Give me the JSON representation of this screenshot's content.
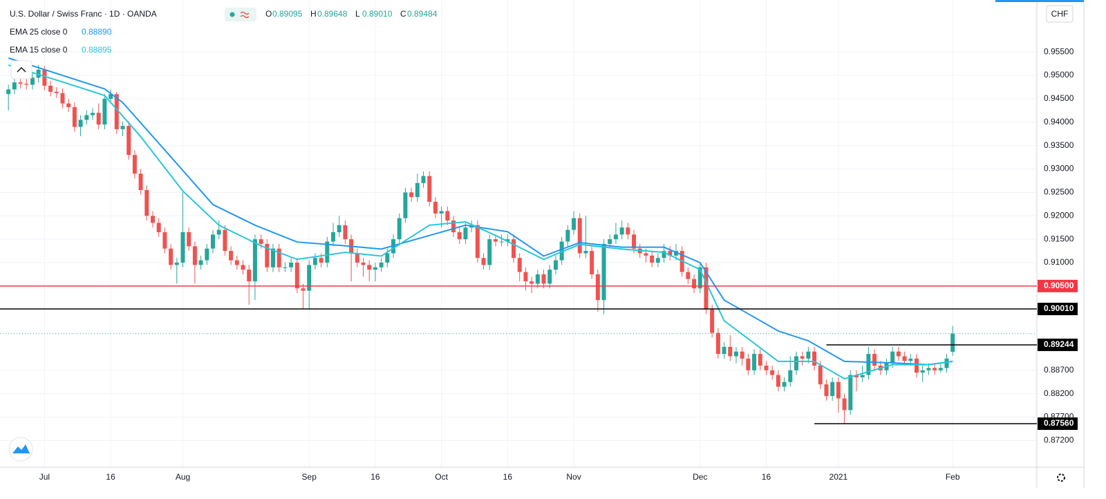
{
  "chart_data": {
    "type": "candlestick",
    "title": "U.S. Dollar / Swiss Franc · 1D · OANDA",
    "ohlc_prefixes": [
      "O",
      "H",
      "L",
      "C"
    ],
    "ohlc_labels": [
      "0.89095",
      "0.89648",
      "0.89010",
      "0.89484"
    ],
    "axis_unit": "CHF",
    "up_color": "#26a69a",
    "down_color": "#ef5350",
    "grid": true,
    "xlim": [
      -1.4,
      171
    ],
    "ylim": [
      0.8663,
      0.9661
    ],
    "yticks": [
      {
        "value": 0.955,
        "label": "0.95500"
      },
      {
        "value": 0.95,
        "label": "0.95000"
      },
      {
        "value": 0.945,
        "label": "0.94500"
      },
      {
        "value": 0.94,
        "label": "0.94000"
      },
      {
        "value": 0.935,
        "label": "0.93500"
      },
      {
        "value": 0.93,
        "label": "0.93000"
      },
      {
        "value": 0.925,
        "label": "0.92500"
      },
      {
        "value": 0.92,
        "label": "0.92000"
      },
      {
        "value": 0.915,
        "label": "0.91500"
      },
      {
        "value": 0.91,
        "label": "0.91000"
      },
      {
        "value": 0.887,
        "label": "0.88700"
      },
      {
        "value": 0.882,
        "label": "0.88200"
      },
      {
        "value": 0.877,
        "label": "0.87700"
      },
      {
        "value": 0.872,
        "label": "0.87200"
      }
    ],
    "xticks": [
      {
        "value": 6,
        "label": "Jul"
      },
      {
        "value": 17,
        "label": "16"
      },
      {
        "value": 29,
        "label": "Aug"
      },
      {
        "value": 50,
        "label": "Sep"
      },
      {
        "value": 61,
        "label": "16"
      },
      {
        "value": 72,
        "label": "Oct"
      },
      {
        "value": 83,
        "label": "16"
      },
      {
        "value": 94,
        "label": "Nov"
      },
      {
        "value": 115,
        "label": "Dec"
      },
      {
        "value": 126,
        "label": "16"
      },
      {
        "value": 138,
        "label": "2021"
      },
      {
        "value": 157,
        "label": "Feb"
      }
    ],
    "hlines": [
      {
        "value": 0.905,
        "label": "0.90500",
        "color": "#f23645"
      },
      {
        "value": 0.9001,
        "label": "0.90010",
        "color": "#000000"
      },
      {
        "value": 0.89244,
        "label": "0.89244",
        "color": "#000000",
        "from": 136
      },
      {
        "value": 0.8756,
        "label": "0.87560",
        "color": "#000000",
        "from": 134
      }
    ],
    "open": [
      0.946,
      0.947,
      0.9485,
      0.9482,
      0.948,
      0.9495,
      0.9512,
      0.9478,
      0.9465,
      0.9462,
      0.944,
      0.9432,
      0.939,
      0.9405,
      0.9415,
      0.942,
      0.9395,
      0.945,
      0.946,
      0.9385,
      0.9392,
      0.933,
      0.929,
      0.9255,
      0.92,
      0.9185,
      0.9165,
      0.913,
      0.9095,
      0.91,
      0.9165,
      0.9135,
      0.9095,
      0.9105,
      0.913,
      0.916,
      0.917,
      0.9125,
      0.9105,
      0.9095,
      0.9085,
      0.906,
      0.915,
      0.914,
      0.909,
      0.913,
      0.909,
      0.909,
      0.91,
      0.9045,
      0.904,
      0.9095,
      0.911,
      0.91,
      0.9145,
      0.9165,
      0.918,
      0.915,
      0.912,
      0.91,
      0.9095,
      0.9085,
      0.909,
      0.91,
      0.912,
      0.915,
      0.9195,
      0.925,
      0.924,
      0.927,
      0.9285,
      0.923,
      0.9205,
      0.921,
      0.919,
      0.9165,
      0.915,
      0.9175,
      0.918,
      0.911,
      0.9095,
      0.915,
      0.9145,
      0.9145,
      0.915,
      0.911,
      0.908,
      0.906,
      0.9055,
      0.9075,
      0.9055,
      0.9085,
      0.9105,
      0.9145,
      0.917,
      0.9195,
      0.912,
      0.9125,
      0.9075,
      0.902,
      0.914,
      0.915,
      0.916,
      0.9175,
      0.916,
      0.913,
      0.912,
      0.9115,
      0.91,
      0.911,
      0.9125,
      0.9115,
      0.9125,
      0.908,
      0.9065,
      0.9045,
      0.909,
      0.9,
      0.895,
      0.8905,
      0.892,
      0.89,
      0.891,
      0.8895,
      0.887,
      0.8905,
      0.888,
      0.887,
      0.886,
      0.8835,
      0.8845,
      0.887,
      0.89,
      0.8895,
      0.891,
      0.888,
      0.884,
      0.8815,
      0.8845,
      0.881,
      0.8785,
      0.886,
      0.8855,
      0.886,
      0.8905,
      0.888,
      0.887,
      0.8885,
      0.891,
      0.89,
      0.889,
      0.8895,
      0.8865,
      0.887,
      0.8875,
      0.887,
      0.8875,
      0.89095
    ],
    "high": [
      0.948,
      0.9495,
      0.9495,
      0.9492,
      0.9505,
      0.9522,
      0.952,
      0.9488,
      0.9475,
      0.9472,
      0.945,
      0.9442,
      0.9415,
      0.9425,
      0.943,
      0.944,
      0.946,
      0.947,
      0.9465,
      0.9402,
      0.9402,
      0.934,
      0.93,
      0.9265,
      0.921,
      0.9195,
      0.9175,
      0.914,
      0.911,
      0.925,
      0.9175,
      0.9145,
      0.9115,
      0.914,
      0.917,
      0.919,
      0.918,
      0.9135,
      0.9115,
      0.9105,
      0.9095,
      0.916,
      0.916,
      0.915,
      0.914,
      0.914,
      0.91,
      0.911,
      0.911,
      0.9055,
      0.9105,
      0.912,
      0.912,
      0.9155,
      0.9185,
      0.92,
      0.919,
      0.916,
      0.913,
      0.911,
      0.9105,
      0.91,
      0.911,
      0.913,
      0.916,
      0.9205,
      0.926,
      0.926,
      0.929,
      0.9295,
      0.9295,
      0.924,
      0.922,
      0.922,
      0.92,
      0.9175,
      0.9185,
      0.919,
      0.919,
      0.912,
      0.916,
      0.916,
      0.916,
      0.916,
      0.916,
      0.912,
      0.909,
      0.907,
      0.9085,
      0.9085,
      0.9095,
      0.9115,
      0.9155,
      0.918,
      0.921,
      0.9205,
      0.92,
      0.9135,
      0.9085,
      0.915,
      0.916,
      0.9185,
      0.919,
      0.9185,
      0.917,
      0.914,
      0.913,
      0.9125,
      0.912,
      0.914,
      0.9135,
      0.914,
      0.9135,
      0.909,
      0.9075,
      0.91,
      0.91,
      0.901,
      0.896,
      0.893,
      0.8945,
      0.892,
      0.892,
      0.8905,
      0.8915,
      0.8915,
      0.889,
      0.888,
      0.887,
      0.8855,
      0.89,
      0.891,
      0.891,
      0.892,
      0.892,
      0.889,
      0.885,
      0.8855,
      0.8855,
      0.882,
      0.887,
      0.887,
      0.888,
      0.892,
      0.8915,
      0.889,
      0.8895,
      0.892,
      0.892,
      0.891,
      0.8905,
      0.8905,
      0.888,
      0.8885,
      0.8885,
      0.8885,
      0.8905,
      0.89648
    ],
    "low": [
      0.9425,
      0.946,
      0.9472,
      0.947,
      0.947,
      0.9485,
      0.9468,
      0.9455,
      0.9452,
      0.943,
      0.9422,
      0.938,
      0.937,
      0.9395,
      0.9405,
      0.9385,
      0.9385,
      0.944,
      0.9375,
      0.937,
      0.932,
      0.928,
      0.9245,
      0.919,
      0.9175,
      0.9155,
      0.912,
      0.9085,
      0.9055,
      0.909,
      0.9125,
      0.9055,
      0.9085,
      0.9095,
      0.912,
      0.915,
      0.9115,
      0.9095,
      0.9085,
      0.9075,
      0.901,
      0.902,
      0.913,
      0.908,
      0.908,
      0.908,
      0.908,
      0.908,
      0.9035,
      0.9,
      0.9,
      0.9085,
      0.909,
      0.909,
      0.9135,
      0.9155,
      0.914,
      0.906,
      0.909,
      0.907,
      0.906,
      0.906,
      0.908,
      0.909,
      0.911,
      0.914,
      0.9185,
      0.923,
      0.923,
      0.926,
      0.922,
      0.9195,
      0.9175,
      0.918,
      0.9155,
      0.914,
      0.914,
      0.9165,
      0.91,
      0.9085,
      0.9085,
      0.9135,
      0.9135,
      0.9135,
      0.91,
      0.906,
      0.904,
      0.9035,
      0.9045,
      0.9045,
      0.9045,
      0.9075,
      0.9095,
      0.9135,
      0.916,
      0.911,
      0.911,
      0.9065,
      0.8995,
      0.899,
      0.913,
      0.914,
      0.915,
      0.915,
      0.912,
      0.911,
      0.91,
      0.909,
      0.909,
      0.91,
      0.9105,
      0.9105,
      0.907,
      0.9055,
      0.9035,
      0.9035,
      0.899,
      0.894,
      0.8895,
      0.8895,
      0.889,
      0.8885,
      0.888,
      0.886,
      0.886,
      0.887,
      0.886,
      0.885,
      0.8825,
      0.8825,
      0.8835,
      0.886,
      0.888,
      0.8885,
      0.887,
      0.883,
      0.8805,
      0.8805,
      0.878,
      0.8756,
      0.8775,
      0.8825,
      0.8845,
      0.885,
      0.887,
      0.886,
      0.886,
      0.8875,
      0.889,
      0.888,
      0.888,
      0.8855,
      0.8845,
      0.886,
      0.886,
      0.8865,
      0.8865,
      0.8901
    ],
    "close": [
      0.947,
      0.9485,
      0.9482,
      0.948,
      0.9495,
      0.9512,
      0.9478,
      0.9465,
      0.9462,
      0.944,
      0.9432,
      0.939,
      0.9405,
      0.9415,
      0.942,
      0.9395,
      0.945,
      0.946,
      0.9385,
      0.9392,
      0.933,
      0.929,
      0.9255,
      0.92,
      0.9185,
      0.9165,
      0.913,
      0.9095,
      0.91,
      0.9165,
      0.9135,
      0.9095,
      0.9105,
      0.913,
      0.916,
      0.917,
      0.9125,
      0.9105,
      0.9095,
      0.9085,
      0.906,
      0.915,
      0.914,
      0.909,
      0.913,
      0.909,
      0.909,
      0.91,
      0.9045,
      0.904,
      0.9095,
      0.911,
      0.91,
      0.9145,
      0.9165,
      0.918,
      0.915,
      0.912,
      0.91,
      0.9095,
      0.9085,
      0.909,
      0.91,
      0.912,
      0.915,
      0.9195,
      0.925,
      0.924,
      0.927,
      0.9285,
      0.923,
      0.9205,
      0.921,
      0.919,
      0.9165,
      0.915,
      0.9175,
      0.918,
      0.911,
      0.9095,
      0.915,
      0.9145,
      0.9145,
      0.915,
      0.911,
      0.908,
      0.906,
      0.9055,
      0.9075,
      0.9055,
      0.9085,
      0.9105,
      0.9145,
      0.917,
      0.9195,
      0.912,
      0.9125,
      0.9075,
      0.902,
      0.914,
      0.915,
      0.916,
      0.9175,
      0.916,
      0.913,
      0.912,
      0.9115,
      0.91,
      0.911,
      0.9125,
      0.9115,
      0.9125,
      0.908,
      0.9065,
      0.9045,
      0.909,
      0.9,
      0.895,
      0.8905,
      0.892,
      0.89,
      0.891,
      0.8895,
      0.887,
      0.8905,
      0.888,
      0.887,
      0.886,
      0.8835,
      0.8845,
      0.887,
      0.89,
      0.8895,
      0.891,
      0.888,
      0.884,
      0.8815,
      0.8845,
      0.881,
      0.8785,
      0.886,
      0.8855,
      0.886,
      0.8905,
      0.888,
      0.887,
      0.8885,
      0.891,
      0.89,
      0.889,
      0.8895,
      0.8865,
      0.887,
      0.8875,
      0.887,
      0.8875,
      0.8895,
      0.89484
    ],
    "series": [
      {
        "name": "EMA 25 close 0",
        "color": "#2196f3",
        "legend_value": "0.88890",
        "x": [
          0,
          9,
          16,
          19,
          27,
          34,
          41,
          48,
          56,
          62,
          70,
          76,
          83,
          89,
          95,
          102,
          109,
          115,
          119,
          128,
          133,
          139,
          147,
          153,
          157
        ],
        "values": [
          0.9537,
          0.95,
          0.9471,
          0.9442,
          0.9326,
          0.9224,
          0.918,
          0.9144,
          0.9136,
          0.9129,
          0.9158,
          0.918,
          0.9166,
          0.9114,
          0.9143,
          0.9133,
          0.9133,
          0.91,
          0.902,
          0.8954,
          0.8933,
          0.8889,
          0.8886,
          0.8882,
          0.8889
        ]
      },
      {
        "name": "EMA 15 close 0",
        "color": "#26c6da",
        "legend_value": "0.88895",
        "x": [
          0,
          9,
          16,
          22,
          29,
          35,
          42,
          48,
          56,
          62,
          70,
          76,
          81,
          89,
          95,
          102,
          109,
          115,
          119,
          128,
          134,
          139,
          147,
          153,
          157
        ],
        "values": [
          0.9522,
          0.9486,
          0.9457,
          0.9369,
          0.9253,
          0.918,
          0.9136,
          0.9107,
          0.9122,
          0.9114,
          0.918,
          0.9187,
          0.9158,
          0.9107,
          0.9139,
          0.9129,
          0.9122,
          0.9085,
          0.8976,
          0.8889,
          0.8889,
          0.8852,
          0.8882,
          0.8882,
          0.88895
        ]
      }
    ]
  }
}
